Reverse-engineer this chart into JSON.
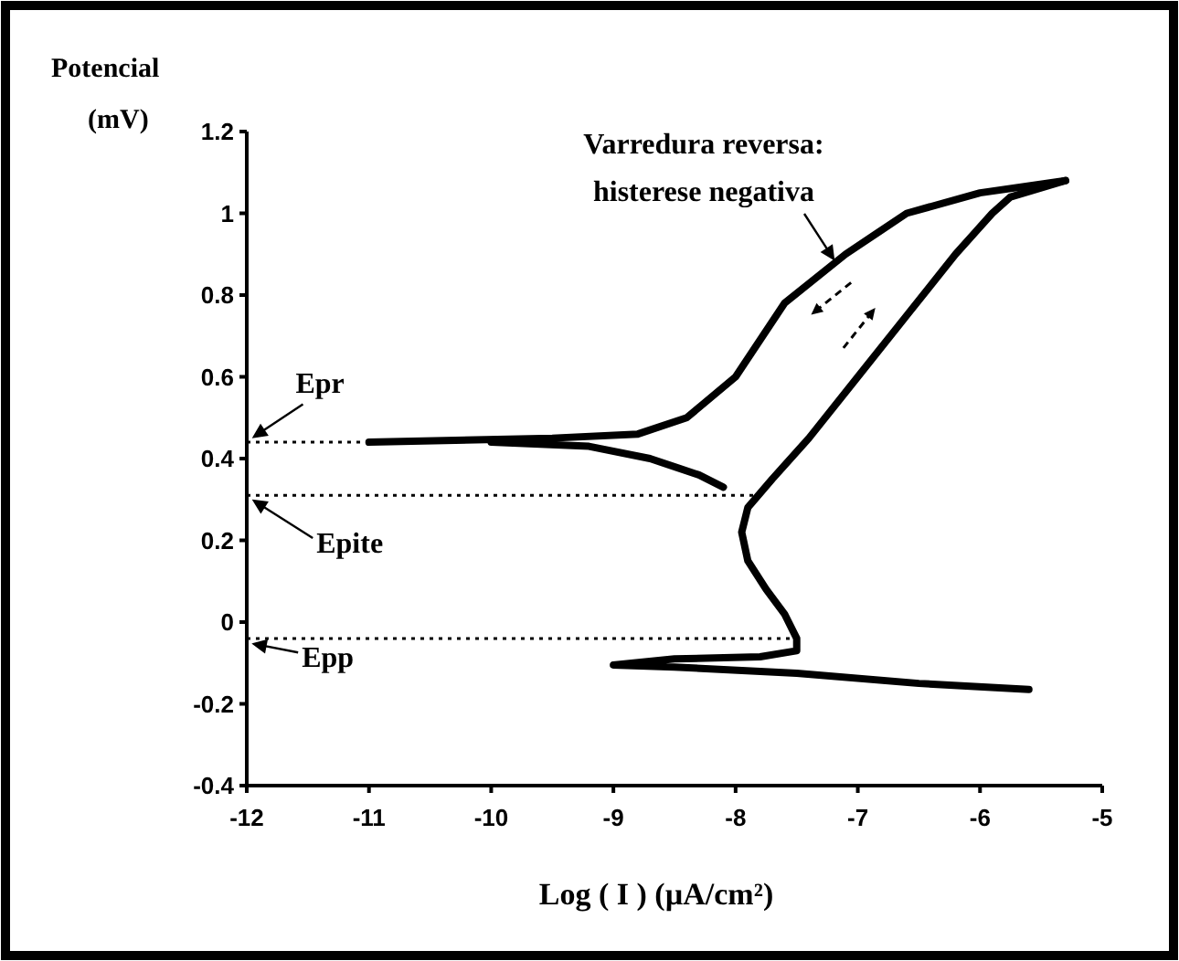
{
  "chart_data": {
    "type": "line",
    "xlabel": "Log ( I ) (µA/cm²)",
    "ylabel": "Potencial\n(mV)",
    "xlim": [
      -12,
      -5
    ],
    "xticks": [
      -12,
      -11,
      -10,
      -9,
      -8,
      -7,
      -6,
      -5
    ],
    "ylim": [
      -0.4,
      1.2
    ],
    "yticks": [
      -0.4,
      -0.2,
      0,
      0.2,
      0.4,
      0.6,
      0.8,
      1,
      1.2
    ],
    "grid": false,
    "marker": "none",
    "line_style": "solid",
    "series": [
      {
        "color": "#000000",
        "x": [
          -5.6,
          -6.5,
          -7.5,
          -8.5,
          -9,
          -8.5,
          -7.8,
          -7.5,
          -7.5,
          -7.6,
          -7.75,
          -7.9,
          -7.95,
          -7.9,
          -7.7,
          -7.4,
          -7.0,
          -6.6,
          -6.2,
          -5.9,
          -5.75,
          -5.3
        ],
        "values": [
          -0.165,
          -0.15,
          -0.125,
          -0.11,
          -0.105,
          -0.09,
          -0.085,
          -0.07,
          -0.04,
          0.02,
          0.08,
          0.15,
          0.22,
          0.28,
          0.35,
          0.45,
          0.6,
          0.75,
          0.9,
          1.0,
          1.04,
          1.08
        ]
      },
      {
        "color": "#000000",
        "x": [
          -5.3,
          -6.0,
          -6.6,
          -7.1,
          -7.6,
          -8.0,
          -8.4,
          -8.8,
          -9.5,
          -11
        ],
        "values": [
          1.08,
          1.05,
          1.0,
          0.9,
          0.78,
          0.6,
          0.5,
          0.46,
          0.45,
          0.44
        ]
      },
      {
        "color": "#000000",
        "x": [
          -10,
          -9.2,
          -8.7,
          -8.3,
          -8.1
        ],
        "values": [
          0.44,
          0.43,
          0.4,
          0.36,
          0.33
        ]
      }
    ],
    "ref_lines": [
      {
        "axis": "y",
        "value": 0.44,
        "label": "Epr",
        "line_style": "dotted"
      },
      {
        "axis": "y",
        "value": 0.31,
        "label": "Epite",
        "line_style": "dotted"
      },
      {
        "axis": "y",
        "value": -0.04,
        "label": "Epp",
        "line_style": "dotted"
      }
    ],
    "annotations": [
      {
        "text": "Varredura reversa:\nhisterese negativa",
        "x": -7.2,
        "y": 0.88
      }
    ]
  }
}
